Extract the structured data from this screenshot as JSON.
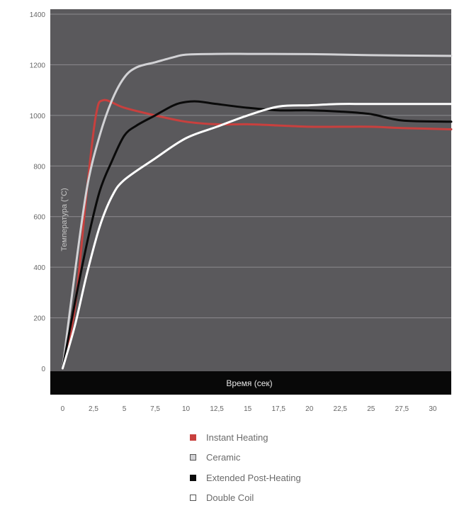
{
  "colors": {
    "plot_bg": "#5a595c",
    "grid": "#8c8b8e",
    "time_band": "#080808",
    "page_bg": "#ffffff"
  },
  "chart_data": {
    "type": "line",
    "title": "",
    "xlabel": "Время (сек)",
    "ylabel": "Температура (°C)",
    "xlim": [
      -1,
      31.5
    ],
    "ylim": [
      0,
      1400
    ],
    "x_ticks": [
      "0",
      "2,5",
      "5",
      "7,5",
      "10",
      "12,5",
      "15",
      "17,5",
      "20",
      "22,5",
      "25",
      "27,5",
      "30"
    ],
    "y_ticks": [
      "0",
      "200",
      "400",
      "600",
      "800",
      "1000",
      "1200",
      "1400"
    ],
    "grid": true,
    "legend_position": "bottom",
    "series": [
      {
        "name": "Instant Heating",
        "color": "#c8403e",
        "swatch_border": "#c8403e",
        "points": [
          [
            0,
            0
          ],
          [
            1,
            240
          ],
          [
            2,
            720
          ],
          [
            2.7,
            1000
          ],
          [
            3.3,
            1060
          ],
          [
            5,
            1030
          ],
          [
            7.5,
            1000
          ],
          [
            10,
            975
          ],
          [
            12.5,
            965
          ],
          [
            15,
            965
          ],
          [
            17.5,
            960
          ],
          [
            20,
            955
          ],
          [
            22.5,
            955
          ],
          [
            25,
            955
          ],
          [
            27.5,
            950
          ],
          [
            31.5,
            945
          ]
        ]
      },
      {
        "name": "Ceramic",
        "color": "#d2d2d5",
        "swatch_border": "#555555",
        "points": [
          [
            0,
            0
          ],
          [
            1,
            380
          ],
          [
            2,
            720
          ],
          [
            3,
            920
          ],
          [
            4,
            1060
          ],
          [
            5,
            1150
          ],
          [
            6,
            1190
          ],
          [
            7.5,
            1210
          ],
          [
            9,
            1230
          ],
          [
            10,
            1240
          ],
          [
            12.5,
            1243
          ],
          [
            15,
            1243
          ],
          [
            20,
            1242
          ],
          [
            25,
            1238
          ],
          [
            31.5,
            1235
          ]
        ]
      },
      {
        "name": "Extended Post-Heating",
        "color": "#0a0a0a",
        "swatch_border": "#0a0a0a",
        "points": [
          [
            0,
            0
          ],
          [
            1,
            260
          ],
          [
            2,
            500
          ],
          [
            3,
            700
          ],
          [
            4,
            820
          ],
          [
            5,
            920
          ],
          [
            6,
            960
          ],
          [
            7.5,
            1000
          ],
          [
            9,
            1040
          ],
          [
            10,
            1053
          ],
          [
            11,
            1055
          ],
          [
            12.5,
            1045
          ],
          [
            15,
            1030
          ],
          [
            17.5,
            1020
          ],
          [
            20,
            1020
          ],
          [
            22.5,
            1015
          ],
          [
            25,
            1005
          ],
          [
            27.5,
            980
          ],
          [
            31.5,
            975
          ]
        ]
      },
      {
        "name": "Double Coil",
        "color": "#ffffff",
        "swatch_border": "#555555",
        "points": [
          [
            0,
            0
          ],
          [
            1,
            170
          ],
          [
            2,
            380
          ],
          [
            3,
            560
          ],
          [
            4,
            680
          ],
          [
            5,
            745
          ],
          [
            7.5,
            830
          ],
          [
            10,
            910
          ],
          [
            12.5,
            955
          ],
          [
            15,
            1000
          ],
          [
            17.5,
            1035
          ],
          [
            20,
            1040
          ],
          [
            22.5,
            1045
          ],
          [
            25,
            1045
          ],
          [
            31.5,
            1045
          ]
        ]
      }
    ]
  }
}
